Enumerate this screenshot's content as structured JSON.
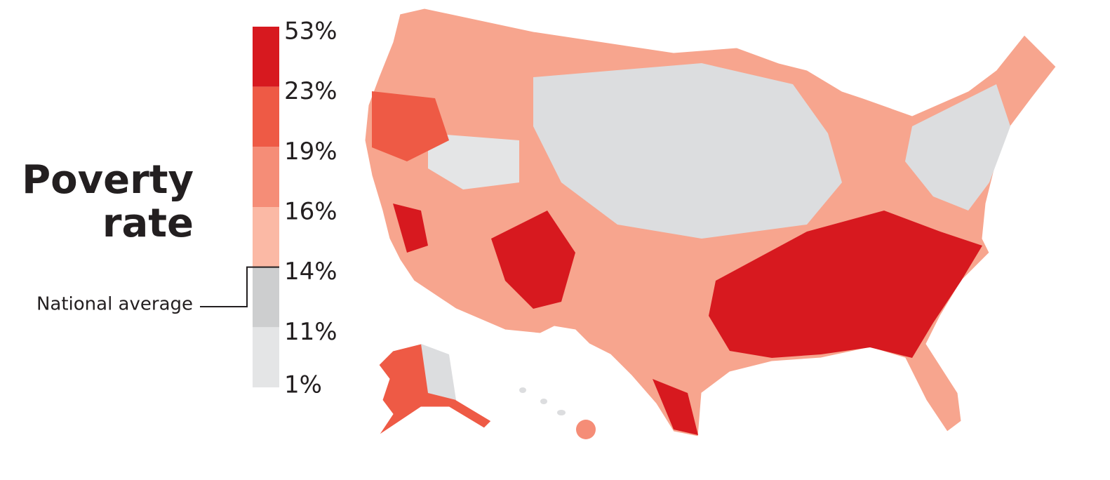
{
  "title_lines": [
    "Poverty",
    "rate"
  ],
  "legend": {
    "colors": [
      "#d7191f",
      "#ee5a45",
      "#f58d77",
      "#fbb9a5",
      "#cdcecf",
      "#e4e5e6"
    ],
    "ticks": [
      {
        "value": 53,
        "label": "53%"
      },
      {
        "value": 23,
        "label": "23%"
      },
      {
        "value": 19,
        "label": "19%"
      },
      {
        "value": 16,
        "label": "16%"
      },
      {
        "value": 14,
        "label": "14%"
      },
      {
        "value": 11,
        "label": "11%"
      },
      {
        "value": 1,
        "label": "1%"
      }
    ]
  },
  "national_average": {
    "label": "National average",
    "value": 14
  }
}
